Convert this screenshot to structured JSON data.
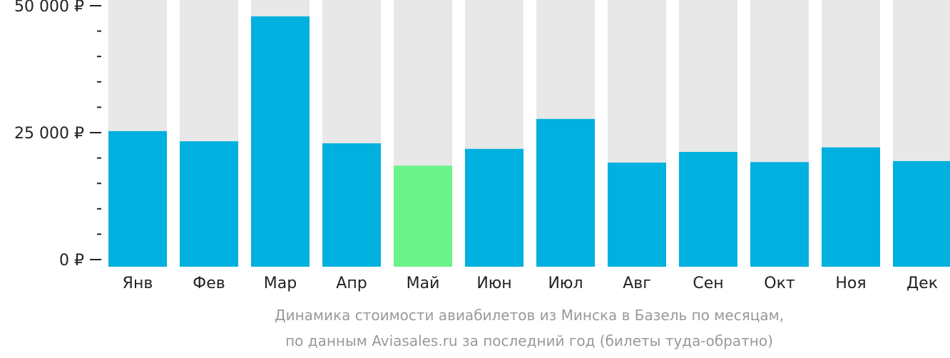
{
  "chart_data": {
    "type": "bar",
    "title": "Динамика стоимости авиабилетов из Минска в Базель по месяцам,",
    "subtitle": "по данным Aviasales.ru за последний год (билеты туда-обратно)",
    "categories": [
      "Янв",
      "Фев",
      "Мар",
      "Апр",
      "Май",
      "Июн",
      "Июл",
      "Авг",
      "Сен",
      "Окт",
      "Ноя",
      "Дек"
    ],
    "values": [
      25300,
      23300,
      47900,
      22900,
      18500,
      21800,
      27700,
      19100,
      21200,
      19200,
      22100,
      19400
    ],
    "highlight_index": 4,
    "ylim": [
      0,
      50000
    ],
    "yticks": [
      {
        "value": 0,
        "label": "0 ₽"
      },
      {
        "value": 25000,
        "label": "25 000 ₽"
      },
      {
        "value": 50000,
        "label": "50 000 ₽"
      }
    ],
    "minor_tick_step": 5000,
    "xlabel": "",
    "ylabel": "",
    "colors": {
      "bar": "#00b0de",
      "highlight": "#6cf28a",
      "background": "#e8e8e8",
      "axis": "#222222",
      "caption": "#999999"
    }
  }
}
